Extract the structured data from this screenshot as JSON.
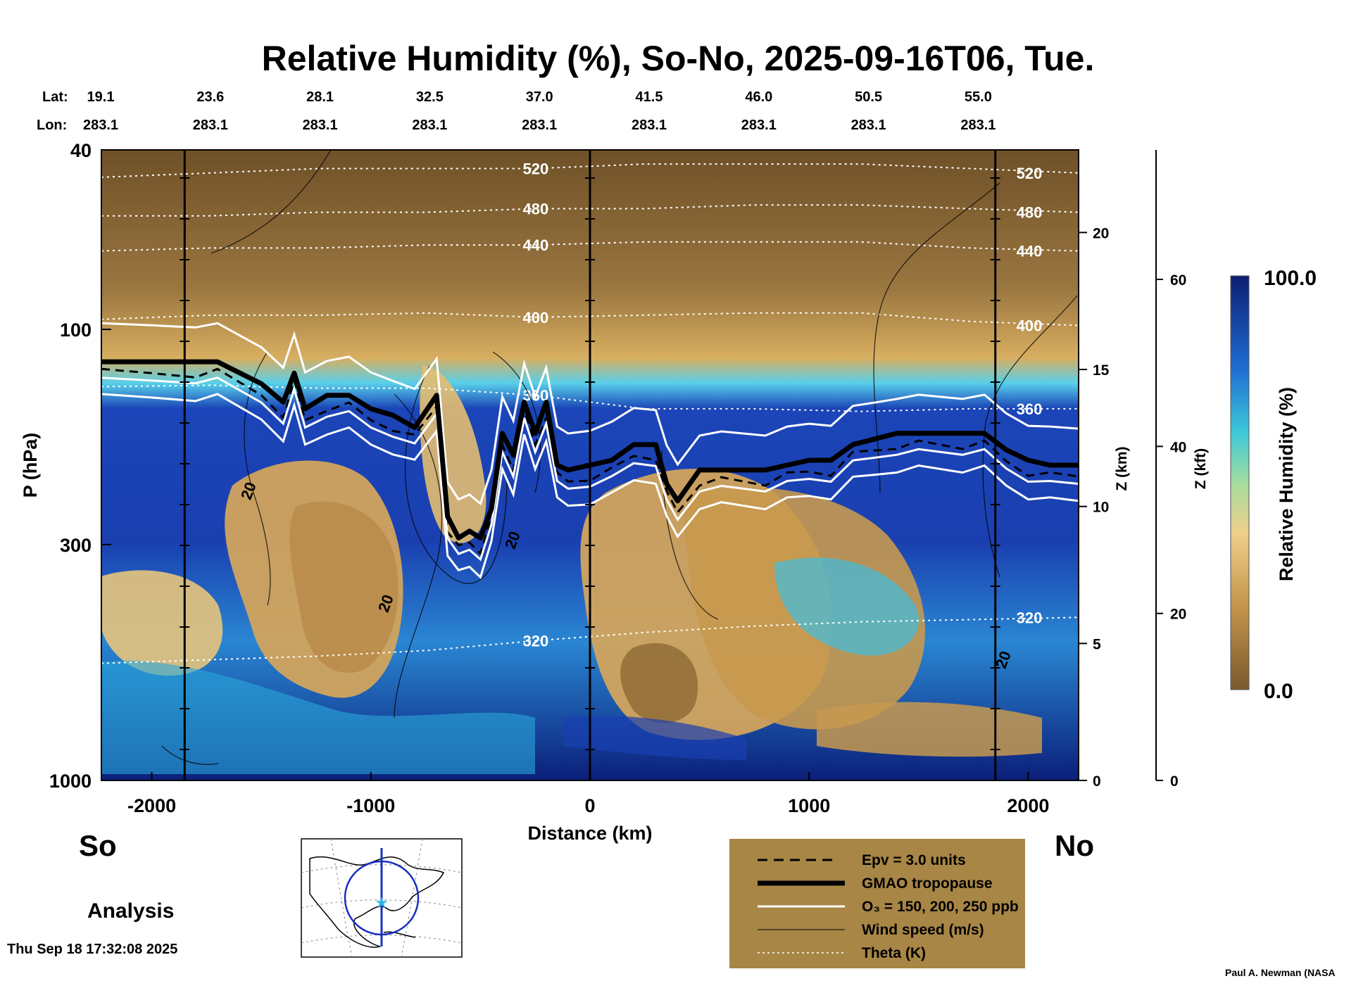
{
  "title": "Relative Humidity (%), So-No, 2025-09-16T06, Tue.",
  "header": {
    "lat_label": "Lat:",
    "lon_label": "Lon:",
    "lat": [
      "19.1",
      "23.6",
      "28.1",
      "32.5",
      "37.0",
      "41.5",
      "46.0",
      "50.5",
      "55.0"
    ],
    "lon": [
      "283.1",
      "283.1",
      "283.1",
      "283.1",
      "283.1",
      "283.1",
      "283.1",
      "283.1",
      "283.1"
    ]
  },
  "axes": {
    "x_label": "Distance (km)",
    "y_label": "P (hPa)",
    "z_km_label": "Z (km)",
    "z_kft_label": "Z (kft)",
    "colorbar_label": "Relative Humidity (%)",
    "colorbar_max": "100.0",
    "colorbar_min": "0.0"
  },
  "chart_data": {
    "type": "heatmap",
    "title": "Relative Humidity (%), So-No, 2025-09-16T06, Tue.",
    "xlabel": "Distance (km)",
    "ylabel": "P (hPa)",
    "xlim": [
      -2230,
      2230
    ],
    "ylim": [
      1000,
      40
    ],
    "y_scale": "log",
    "x_ticks": [
      -2000,
      -1000,
      0,
      1000,
      2000
    ],
    "y_ticks": [
      40,
      100,
      300,
      1000
    ],
    "z_km_ticks": [
      0,
      5,
      10,
      15,
      20
    ],
    "z_kft_ticks": [
      0,
      20,
      40,
      60
    ],
    "colorbar": {
      "label": "Relative Humidity (%)",
      "min": 0.0,
      "max": 100.0
    },
    "section_markers_km": [
      -1850,
      0,
      1850
    ],
    "theta_contours_K": [
      {
        "label": "520",
        "p": [
          46,
          45,
          44,
          44,
          44,
          43,
          43,
          43,
          44,
          45
        ]
      },
      {
        "label": "480",
        "p": [
          56,
          56,
          55,
          55,
          54,
          54,
          53,
          53,
          54,
          55
        ]
      },
      {
        "label": "440",
        "p": [
          67,
          66,
          66,
          65,
          65,
          64,
          64,
          64,
          66,
          67
        ]
      },
      {
        "label": "400",
        "p": [
          95,
          93,
          93,
          92,
          94,
          93,
          92,
          92,
          96,
          98
        ]
      },
      {
        "label": "360",
        "p": [
          134,
          133,
          135,
          135,
          140,
          150,
          150,
          152,
          150,
          150
        ]
      },
      {
        "label": "320",
        "p": [
          550,
          540,
          530,
          515,
          490,
          470,
          455,
          445,
          440,
          435
        ]
      }
    ],
    "wind_speed_labels": [
      "20",
      "20",
      "20",
      "20"
    ],
    "tropopause_hPa": {
      "x_km": [
        -2230,
        -2000,
        -1800,
        -1700,
        -1500,
        -1400,
        -1350,
        -1300,
        -1200,
        -1100,
        -1000,
        -900,
        -800,
        -700,
        -650,
        -600,
        -550,
        -500,
        -450,
        -400,
        -350,
        -300,
        -250,
        -200,
        -150,
        -100,
        0,
        100,
        200,
        300,
        350,
        400,
        500,
        600,
        700,
        800,
        900,
        1000,
        1100,
        1200,
        1300,
        1400,
        1500,
        1600,
        1700,
        1800,
        1900,
        2000,
        2100,
        2230
      ],
      "p": [
        118,
        118,
        118,
        118,
        132,
        145,
        125,
        150,
        140,
        140,
        150,
        155,
        165,
        140,
        260,
        290,
        280,
        290,
        250,
        170,
        190,
        145,
        170,
        145,
        200,
        205,
        200,
        195,
        180,
        180,
        220,
        240,
        205,
        205,
        205,
        205,
        200,
        195,
        195,
        180,
        175,
        170,
        170,
        170,
        170,
        170,
        185,
        195,
        200,
        200
      ]
    },
    "legend": [
      {
        "style": "dashed",
        "label": "Epv = 3.0 units"
      },
      {
        "style": "thick",
        "label": "GMAO tropopause"
      },
      {
        "style": "white",
        "label": "O₃ = 150, 200, 250 ppb"
      },
      {
        "style": "thin",
        "label": "Wind speed (m/s)"
      },
      {
        "style": "dotted",
        "label": "Theta (K)"
      }
    ]
  },
  "labels": {
    "left_end": "So",
    "right_end": "No",
    "analysis": "Analysis",
    "timestamp": "Thu Sep 18 17:32:08 2025",
    "credit": "Paul A. Newman (NASA"
  },
  "colors": {
    "stratosphere_dry": "#7a5a2e",
    "dry": "#c99a52",
    "moist": "#35b9d6",
    "saturated": "#0d2a8c",
    "legend_box": "#a88646"
  }
}
